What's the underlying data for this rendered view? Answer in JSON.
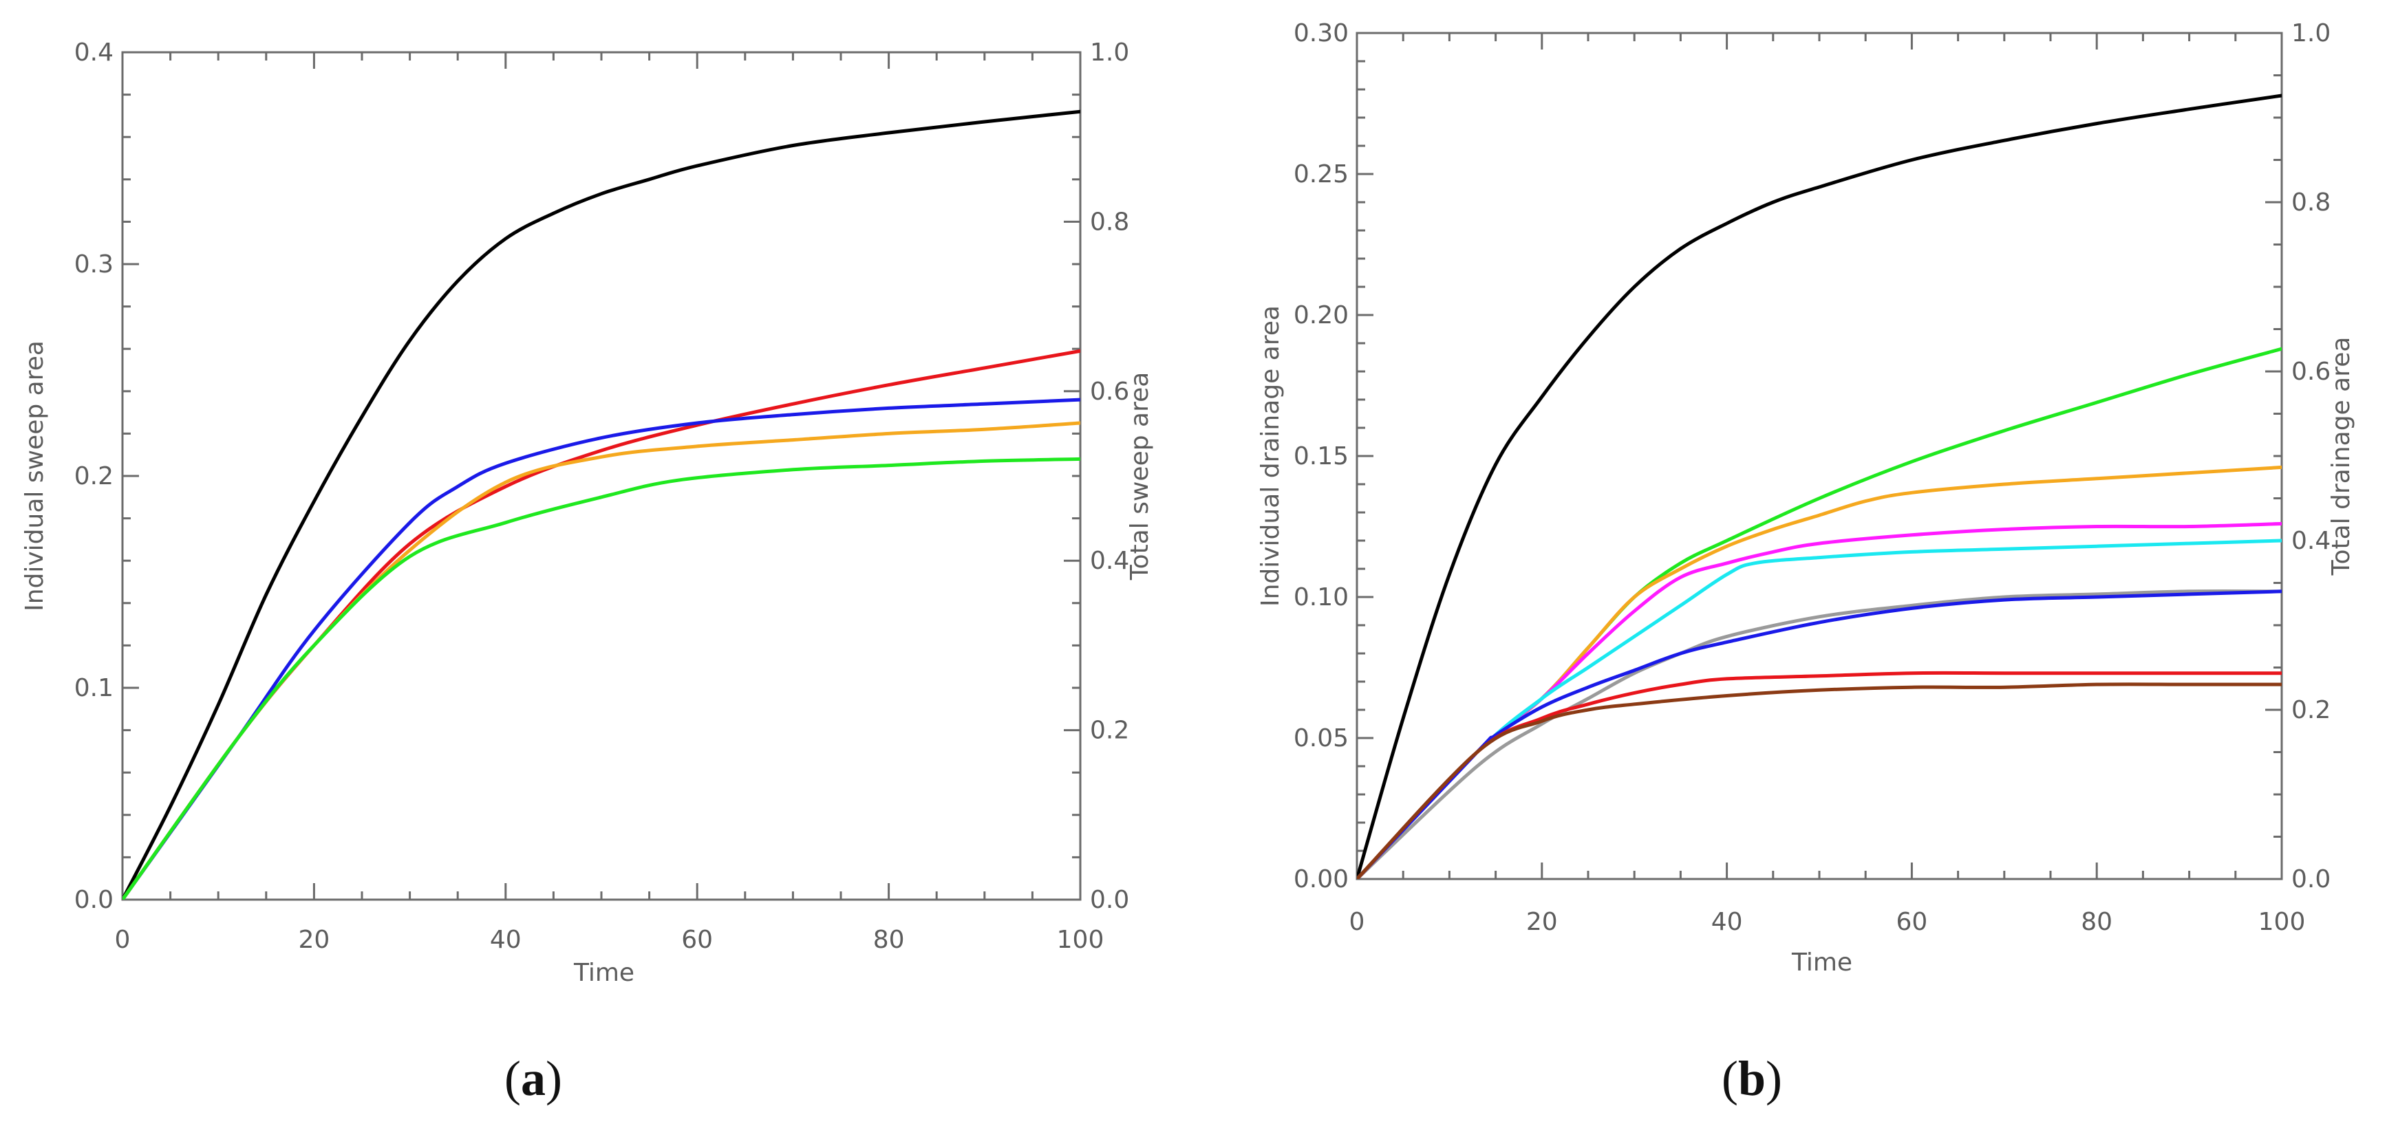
{
  "chart_data": [
    {
      "id": "a",
      "type": "line",
      "panel_label": "(a)",
      "panel_letter": "a",
      "panel_open": "(",
      "panel_close": ")",
      "title": "",
      "xlabel": "Time",
      "ylabel": "Individual sweep area",
      "y2label": "Total sweep area",
      "xlim": [
        0,
        100
      ],
      "ylim": [
        0,
        0.4
      ],
      "y2lim": [
        0,
        1.0
      ],
      "x_ticks": [
        0,
        20,
        40,
        60,
        80,
        100
      ],
      "y_ticks": [
        "0.0",
        "0.1",
        "0.2",
        "0.3",
        "0.4"
      ],
      "y2_ticks": [
        "0.0",
        "0.2",
        "0.4",
        "0.6",
        "0.8",
        "1.0"
      ],
      "series": [
        {
          "name": "total",
          "axis": "right",
          "color": "#000000",
          "x": [
            0,
            5,
            10,
            15,
            20,
            25,
            30,
            35,
            40,
            45,
            50,
            55,
            60,
            70,
            80,
            90,
            100
          ],
          "y": [
            0,
            0.11,
            0.23,
            0.36,
            0.47,
            0.57,
            0.66,
            0.73,
            0.78,
            0.81,
            0.833,
            0.85,
            0.866,
            0.89,
            0.905,
            0.918,
            0.93
          ]
        },
        {
          "name": "red",
          "axis": "left",
          "color": "#e8151b",
          "x": [
            0,
            12,
            20,
            30,
            40,
            50,
            60,
            70,
            80,
            90,
            100
          ],
          "y": [
            0,
            0.076,
            0.12,
            0.168,
            0.195,
            0.212,
            0.224,
            0.234,
            0.243,
            0.251,
            0.259
          ]
        },
        {
          "name": "blue",
          "axis": "left",
          "color": "#1a1ae8",
          "x": [
            0,
            12,
            20,
            30,
            35,
            40,
            50,
            60,
            70,
            80,
            90,
            100
          ],
          "y": [
            0,
            0.076,
            0.127,
            0.178,
            0.195,
            0.206,
            0.218,
            0.225,
            0.229,
            0.232,
            0.234,
            0.236
          ]
        },
        {
          "name": "orange",
          "axis": "left",
          "color": "#f5a81e",
          "x": [
            0,
            12,
            20,
            30,
            40,
            50,
            60,
            70,
            80,
            90,
            100
          ],
          "y": [
            0,
            0.076,
            0.12,
            0.165,
            0.197,
            0.209,
            0.214,
            0.217,
            0.22,
            0.222,
            0.225
          ]
        },
        {
          "name": "green",
          "axis": "left",
          "color": "#1fe81f",
          "x": [
            0,
            12,
            20,
            30,
            40,
            50,
            58,
            70,
            80,
            90,
            100
          ],
          "y": [
            0,
            0.076,
            0.12,
            0.162,
            0.178,
            0.19,
            0.198,
            0.203,
            0.205,
            0.207,
            0.208
          ]
        }
      ]
    },
    {
      "id": "b",
      "type": "line",
      "panel_label": "(b)",
      "panel_letter": "b",
      "panel_open": "(",
      "panel_close": ")",
      "title": "",
      "xlabel": "Time",
      "ylabel": "Individual drainage area",
      "y2label": "Total drainage area",
      "xlim": [
        0,
        100
      ],
      "ylim": [
        0,
        0.3
      ],
      "y2lim": [
        0,
        1.0
      ],
      "x_ticks": [
        0,
        20,
        40,
        60,
        80,
        100
      ],
      "y_ticks": [
        "0.00",
        "0.05",
        "0.10",
        "0.15",
        "0.20",
        "0.25",
        "0.30"
      ],
      "y2_ticks": [
        "0.0",
        "0.2",
        "0.4",
        "0.6",
        "0.8",
        "1.0"
      ],
      "series": [
        {
          "name": "total",
          "axis": "right",
          "color": "#000000",
          "x": [
            0,
            5,
            10,
            15,
            20,
            25,
            30,
            35,
            40,
            45,
            50,
            60,
            70,
            80,
            90,
            100
          ],
          "y": [
            0,
            0.19,
            0.36,
            0.49,
            0.57,
            0.64,
            0.7,
            0.745,
            0.775,
            0.8,
            0.818,
            0.85,
            0.873,
            0.893,
            0.91,
            0.926
          ]
        },
        {
          "name": "green",
          "axis": "left",
          "color": "#1fe81f",
          "x": [
            0,
            13,
            20,
            25,
            30,
            35,
            40,
            50,
            60,
            70,
            80,
            90,
            100
          ],
          "y": [
            0,
            0.045,
            0.064,
            0.082,
            0.1,
            0.112,
            0.12,
            0.135,
            0.148,
            0.159,
            0.169,
            0.179,
            0.188
          ]
        },
        {
          "name": "orange",
          "axis": "left",
          "color": "#f5a81e",
          "x": [
            0,
            13,
            20,
            25,
            30,
            35,
            40,
            45,
            50,
            55,
            60,
            70,
            80,
            90,
            100
          ],
          "y": [
            0,
            0.045,
            0.064,
            0.082,
            0.1,
            0.11,
            0.118,
            0.124,
            0.129,
            0.134,
            0.137,
            0.14,
            0.142,
            0.144,
            0.146
          ]
        },
        {
          "name": "magenta",
          "axis": "left",
          "color": "#ff1aff",
          "x": [
            0,
            13,
            20,
            25,
            30,
            35,
            40,
            45,
            50,
            60,
            70,
            80,
            90,
            100
          ],
          "y": [
            0,
            0.045,
            0.064,
            0.08,
            0.095,
            0.107,
            0.112,
            0.116,
            0.119,
            0.122,
            0.124,
            0.125,
            0.125,
            0.126
          ]
        },
        {
          "name": "cyan",
          "axis": "left",
          "color": "#1ae8f0",
          "x": [
            0,
            13,
            20,
            25,
            30,
            35,
            40,
            43,
            50,
            60,
            70,
            80,
            90,
            100
          ],
          "y": [
            0,
            0.045,
            0.064,
            0.075,
            0.086,
            0.097,
            0.108,
            0.112,
            0.114,
            0.116,
            0.117,
            0.118,
            0.119,
            0.12
          ]
        },
        {
          "name": "gray",
          "axis": "left",
          "color": "#9a9a9a",
          "x": [
            0,
            13,
            20,
            25,
            30,
            35,
            40,
            50,
            60,
            70,
            80,
            90,
            100
          ],
          "y": [
            0,
            0.04,
            0.055,
            0.064,
            0.073,
            0.08,
            0.086,
            0.093,
            0.097,
            0.1,
            0.101,
            0.102,
            0.102
          ]
        },
        {
          "name": "blue",
          "axis": "left",
          "color": "#1a1ae8",
          "x": [
            0,
            13,
            15,
            20,
            25,
            30,
            35,
            40,
            50,
            60,
            70,
            80,
            90,
            100
          ],
          "y": [
            0,
            0.045,
            0.051,
            0.061,
            0.068,
            0.074,
            0.08,
            0.084,
            0.091,
            0.096,
            0.099,
            0.1,
            0.101,
            0.102
          ]
        },
        {
          "name": "red",
          "axis": "left",
          "color": "#e8151b",
          "x": [
            0,
            13,
            20,
            25,
            30,
            35,
            40,
            50,
            60,
            70,
            80,
            90,
            100
          ],
          "y": [
            0,
            0.045,
            0.057,
            0.062,
            0.066,
            0.069,
            0.071,
            0.072,
            0.073,
            0.073,
            0.073,
            0.073,
            0.073
          ]
        },
        {
          "name": "brown",
          "axis": "left",
          "color": "#8b3a14",
          "x": [
            0,
            13,
            20,
            25,
            30,
            40,
            50,
            60,
            70,
            80,
            90,
            100
          ],
          "y": [
            0,
            0.045,
            0.056,
            0.06,
            0.062,
            0.065,
            0.067,
            0.068,
            0.068,
            0.069,
            0.069,
            0.069
          ]
        }
      ]
    }
  ]
}
